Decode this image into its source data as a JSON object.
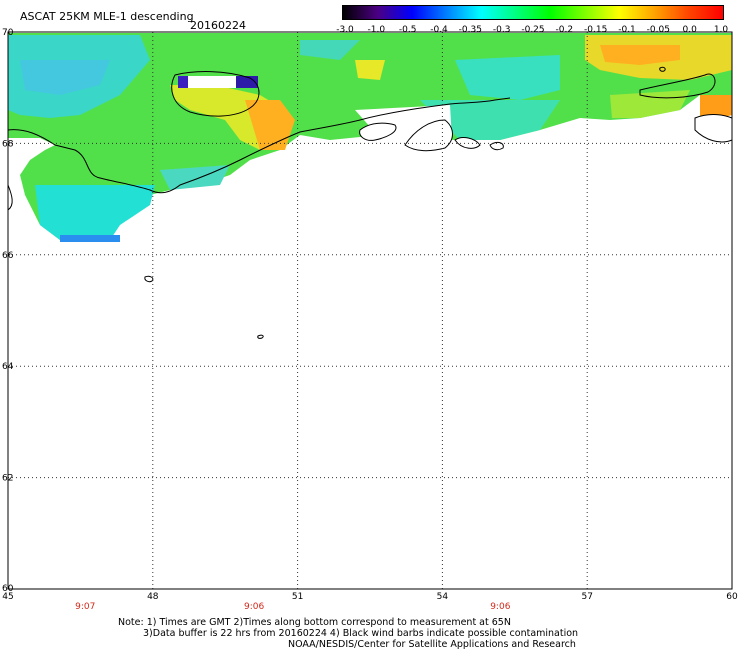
{
  "header": {
    "title": "ASCAT 25KM MLE-1 descending",
    "date": "20160224"
  },
  "colorbar": {
    "labels": [
      "-3.0",
      "-1.0",
      "-0.5",
      "-0.4",
      "-0.35",
      "-0.3",
      "-0.25",
      "-0.2",
      "-0.15",
      "-0.1",
      "-0.05",
      "0.0",
      "1.0"
    ]
  },
  "map": {
    "lat_labels": [
      "70",
      "68",
      "66",
      "64",
      "62",
      "60"
    ],
    "lon_labels": [
      "45",
      "48",
      "51",
      "54",
      "57",
      "60"
    ],
    "time_labels": [
      {
        "text": "9:07",
        "lon": 46.6
      },
      {
        "text": "9:06",
        "lon": 50.1
      },
      {
        "text": "9:06",
        "lon": 55.2
      }
    ],
    "lat_range": [
      60,
      70
    ],
    "lon_range": [
      45,
      60
    ],
    "grid": "dotted"
  },
  "notes": {
    "line1": "Note: 1) Times are GMT 2)Times along bottom correspond to measurement at 65N",
    "line2": "3)Data buffer is 22 hrs from 20160224 4) Black wind barbs indicate possible contamination",
    "line3": "NOAA/NESDIS/Center for Satellite Applications and Research"
  },
  "colors": {
    "scale": [
      "#000000",
      "#4b0082",
      "#0000ff",
      "#0080ff",
      "#00ffff",
      "#00ff80",
      "#00ff00",
      "#80ff00",
      "#ffff00",
      "#ffa500",
      "#ff4500",
      "#ff0000"
    ]
  }
}
